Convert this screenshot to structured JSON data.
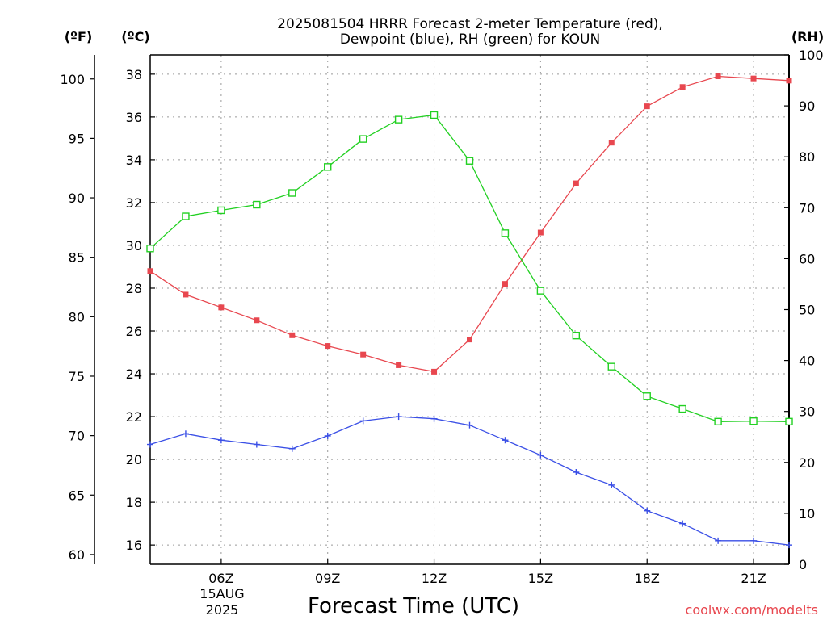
{
  "chart_data": {
    "type": "line",
    "title_line1": "2025081504 HRRR Forecast 2-meter Temperature (red),",
    "title_line2": "Dewpoint (blue), RH (green) for KOUN",
    "xlabel": "Forecast Time (UTC)",
    "units": {
      "fahrenheit": "(ºF)",
      "celsius": "(ºC)",
      "rh": "(RH)"
    },
    "x_hours": [
      4,
      5,
      6,
      7,
      8,
      9,
      10,
      11,
      12,
      13,
      14,
      15,
      16,
      17,
      18,
      19,
      20,
      21,
      22
    ],
    "x_ticks": [
      {
        "hour": 6,
        "label": "06Z"
      },
      {
        "hour": 9,
        "label": "09Z"
      },
      {
        "hour": 12,
        "label": "12Z"
      },
      {
        "hour": 15,
        "label": "15Z"
      },
      {
        "hour": 18,
        "label": "18Z"
      },
      {
        "hour": 21,
        "label": "21Z"
      }
    ],
    "date_label": "15AUG",
    "year_label": "2025",
    "xlim": [
      4,
      22
    ],
    "celsius_ticks": [
      16,
      18,
      20,
      22,
      24,
      26,
      28,
      30,
      32,
      34,
      36,
      38
    ],
    "fahrenheit_ticks": [
      60,
      65,
      70,
      75,
      80,
      85,
      90,
      95,
      100
    ],
    "rh_ticks": [
      0,
      10,
      20,
      30,
      40,
      50,
      60,
      70,
      80,
      90,
      100
    ],
    "ylim_celsius": [
      15.1,
      38.9
    ],
    "ylim_rh": [
      0,
      100
    ],
    "series": [
      {
        "name": "Temperature",
        "color": "#e8474f",
        "marker": "filled-square",
        "axis": "celsius",
        "values": [
          28.8,
          27.7,
          27.1,
          26.5,
          25.8,
          25.3,
          24.9,
          24.4,
          24.1,
          25.6,
          28.2,
          30.6,
          32.9,
          34.8,
          36.5,
          37.4,
          37.9,
          37.8,
          37.7
        ]
      },
      {
        "name": "Dewpoint",
        "color": "#3a4fe6",
        "marker": "plus",
        "axis": "celsius",
        "values": [
          20.7,
          21.2,
          20.9,
          20.7,
          20.5,
          21.1,
          21.8,
          22.0,
          21.9,
          21.6,
          20.9,
          20.2,
          19.4,
          18.8,
          17.6,
          17.0,
          16.2,
          16.2,
          16.0
        ]
      },
      {
        "name": "RH",
        "color": "#22d022",
        "marker": "open-square",
        "axis": "rh",
        "values": [
          62.0,
          68.3,
          69.5,
          70.6,
          72.9,
          78.0,
          83.5,
          87.3,
          88.2,
          79.2,
          65.0,
          53.7,
          44.9,
          38.8,
          33.0,
          30.5,
          28.0,
          28.1,
          28.0
        ]
      }
    ],
    "grid": true
  },
  "credit": "coolwx.com/modelts"
}
